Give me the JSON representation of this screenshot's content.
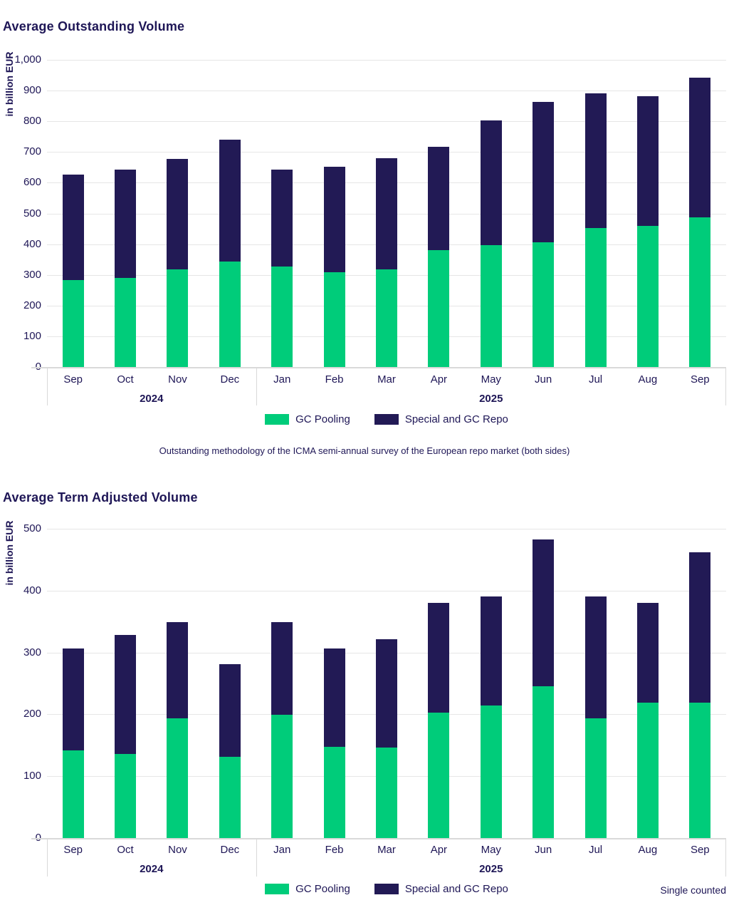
{
  "colors": {
    "gc_pooling_green": "#00CC7A",
    "special_repo_navy": "#221A55",
    "text_navy": "#1E1656",
    "gridline": "#E6E6E6",
    "axis_line": "#D9D9D9",
    "background": "#FFFFFF"
  },
  "chart_data": [
    {
      "type": "bar",
      "stacked": true,
      "title": "Average Outstanding Volume",
      "ylabel": "in billion EUR",
      "ylim": [
        0,
        1000
      ],
      "y_ticks": [
        "1,000",
        "900",
        "800",
        "700",
        "600",
        "500",
        "400",
        "300",
        "200",
        "100",
        "0"
      ],
      "grid": true,
      "legend_position": "bottom-center",
      "categories": [
        "Sep",
        "Oct",
        "Nov",
        "Dec",
        "Jan",
        "Feb",
        "Mar",
        "Apr",
        "May",
        "Jun",
        "Jul",
        "Aug",
        "Sep"
      ],
      "year_groups": [
        {
          "label": "2024",
          "span": 4
        },
        {
          "label": "2025",
          "span": 9
        }
      ],
      "series": [
        {
          "name": "GC Pooling",
          "color": "#00CC7A",
          "values": [
            283,
            291,
            317,
            344,
            327,
            309,
            318,
            380,
            397,
            406,
            452,
            460,
            487
          ]
        },
        {
          "name": "Special and GC Repo",
          "color": "#221A55",
          "values": [
            344,
            352,
            361,
            396,
            316,
            343,
            361,
            336,
            406,
            458,
            438,
            421,
            455
          ]
        }
      ],
      "totals": [
        627,
        643,
        678,
        740,
        643,
        652,
        679,
        716,
        803,
        864,
        890,
        881,
        942
      ],
      "footnote": "Outstanding methodology of the ICMA semi-annual survey of the European repo market (both sides)"
    },
    {
      "type": "bar",
      "stacked": true,
      "title": "Average Term Adjusted Volume",
      "ylabel": "in billion EUR",
      "ylim": [
        0,
        500
      ],
      "y_ticks": [
        "500",
        "400",
        "300",
        "200",
        "100",
        "0"
      ],
      "grid": true,
      "legend_position": "bottom-center",
      "categories": [
        "Sep",
        "Oct",
        "Nov",
        "Dec",
        "Jan",
        "Feb",
        "Mar",
        "Apr",
        "May",
        "Jun",
        "Jul",
        "Aug",
        "Sep"
      ],
      "year_groups": [
        {
          "label": "2024",
          "span": 4
        },
        {
          "label": "2025",
          "span": 9
        }
      ],
      "series": [
        {
          "name": "GC Pooling",
          "color": "#00CC7A",
          "values": [
            142,
            136,
            194,
            131,
            199,
            147,
            146,
            203,
            214,
            245,
            193,
            219,
            219
          ]
        },
        {
          "name": "Special and GC Repo",
          "color": "#221A55",
          "values": [
            165,
            192,
            155,
            150,
            150,
            160,
            176,
            177,
            176,
            238,
            197,
            161,
            243
          ]
        }
      ],
      "totals": [
        307,
        328,
        349,
        281,
        349,
        307,
        322,
        380,
        390,
        483,
        390,
        380,
        462
      ],
      "note": "Single counted"
    }
  ]
}
